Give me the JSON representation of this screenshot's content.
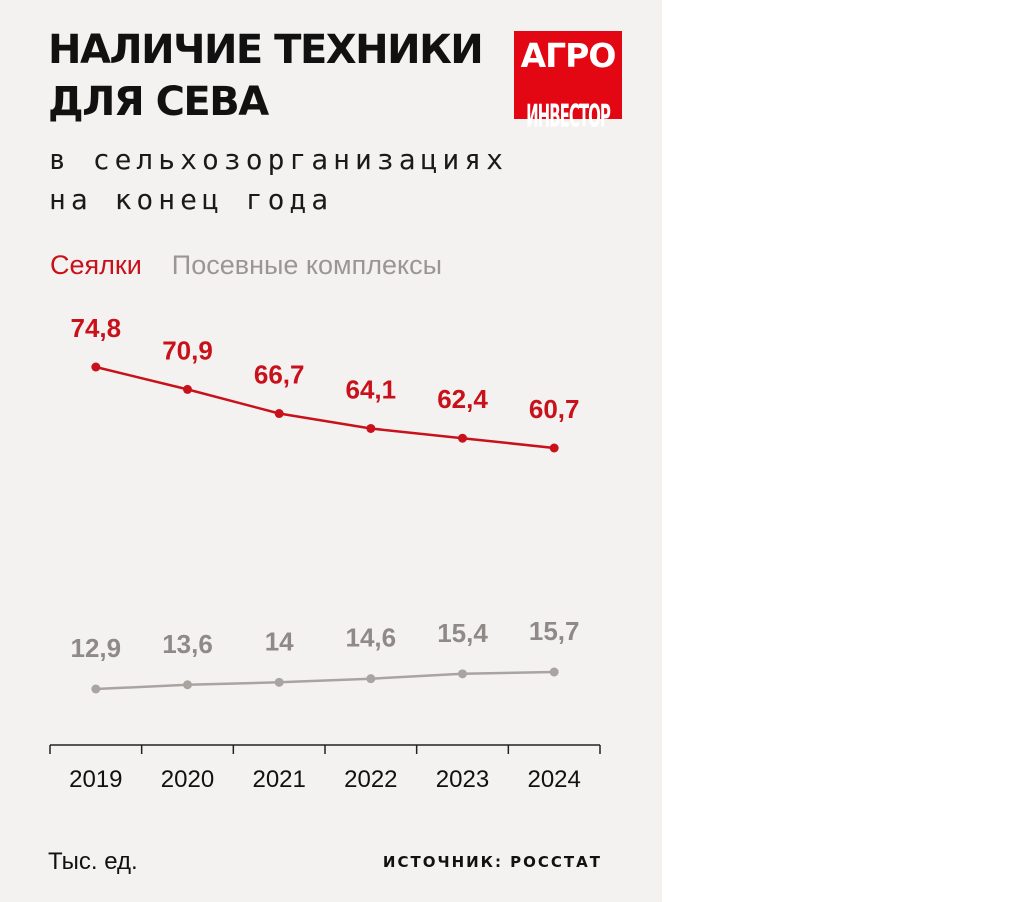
{
  "title_lines": [
    "НАЛИЧИЕ ТЕХНИКИ",
    "ДЛЯ СЕВА"
  ],
  "subtitle_lines": [
    "в сельхозорганизациях",
    "на конец года"
  ],
  "logo": {
    "line1": "АГРО",
    "line2": "ИНВЕСТОР"
  },
  "unit": "Тыс. ед.",
  "source": "ИСТОЧНИК: РОССТАТ",
  "colors": {
    "background": "#f4f2f0",
    "seeders": "#c8111b",
    "complexes": "#a9a4a1",
    "complexes_label": "#8f8a87",
    "logo": "#e30613"
  },
  "chart_data": {
    "type": "line",
    "x": [
      "2019",
      "2020",
      "2021",
      "2022",
      "2023",
      "2024"
    ],
    "series": [
      {
        "name": "Сеялки",
        "values": [
          74.8,
          70.9,
          66.7,
          64.1,
          62.4,
          60.7
        ],
        "labels": [
          "74,8",
          "70,9",
          "66,7",
          "64,1",
          "62,4",
          "60,7"
        ]
      },
      {
        "name": "Посевные комплексы",
        "values": [
          12.9,
          13.6,
          14,
          14.6,
          15.4,
          15.7
        ],
        "labels": [
          "12,9",
          "13,6",
          "14",
          "14,6",
          "15,4",
          "15,7"
        ]
      }
    ],
    "ylabel": "Тыс. ед.",
    "grid": false,
    "legend_position": "top-left"
  }
}
